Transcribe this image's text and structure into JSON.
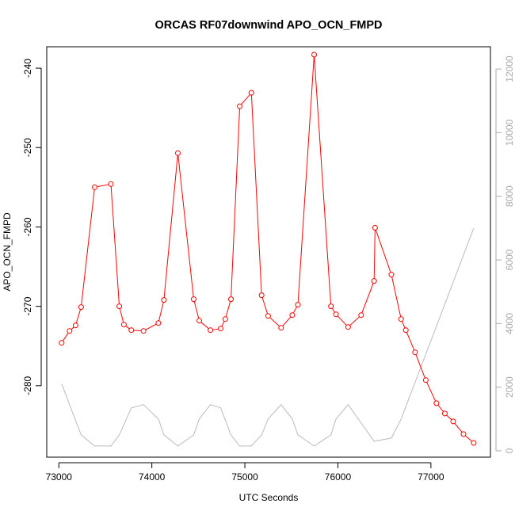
{
  "chart_data": {
    "type": "line",
    "title": "ORCAS RF07downwind APO_OCN_FMPD",
    "xlabel": "UTC Seconds",
    "ylabel": "APO_OCN_FMPD",
    "xlim": [
      72870,
      77640
    ],
    "ylim": [
      -289.0,
      -237.3
    ],
    "y2lim": [
      -200,
      12700
    ],
    "x_ticks": [
      73000,
      74000,
      75000,
      76000,
      77000
    ],
    "y_ticks": [
      -280,
      -270,
      -260,
      -250,
      -240
    ],
    "y2_ticks": [
      0,
      2000,
      4000,
      6000,
      8000,
      10000,
      12000
    ],
    "grid": false,
    "series": [
      {
        "color": "#ff0000",
        "axis": "left",
        "style": "line+points",
        "x": [
          73030,
          73115,
          73180,
          73240,
          73385,
          73560,
          73650,
          73700,
          73780,
          73910,
          74070,
          74130,
          74280,
          74450,
          74510,
          74630,
          74740,
          74790,
          74850,
          74945,
          75070,
          75180,
          75250,
          75390,
          75510,
          75570,
          75745,
          75925,
          75980,
          76110,
          76250,
          76390,
          76400,
          76575,
          76680,
          76730,
          76830,
          76945,
          77060,
          77150,
          77240,
          77350,
          77460
        ],
        "y": [
          -274.6,
          -273.1,
          -272.4,
          -270.1,
          -255.0,
          -254.6,
          -270.0,
          -272.3,
          -273.0,
          -273.1,
          -272.1,
          -269.2,
          -250.7,
          -269.1,
          -271.8,
          -273.0,
          -272.8,
          -271.6,
          -269.1,
          -244.8,
          -243.1,
          -268.6,
          -271.2,
          -272.7,
          -271.1,
          -269.8,
          -238.3,
          -270.0,
          -271.0,
          -272.6,
          -271.1,
          -266.8,
          -260.1,
          -266.0,
          -271.6,
          -273.0,
          -275.8,
          -279.3,
          -282.2,
          -283.5,
          -284.5,
          -286.1,
          -287.2
        ]
      },
      {
        "color": "#bbbbbb",
        "axis": "right",
        "style": "line",
        "x": [
          73030,
          73240,
          73385,
          73560,
          73650,
          73780,
          73910,
          74070,
          74130,
          74280,
          74450,
          74510,
          74630,
          74740,
          74850,
          74945,
          75070,
          75180,
          75250,
          75390,
          75510,
          75570,
          75745,
          75925,
          75980,
          76110,
          76390,
          76575,
          76680,
          77460
        ],
        "y": [
          2100,
          500,
          150,
          150,
          500,
          1350,
          1450,
          1000,
          500,
          150,
          500,
          1000,
          1450,
          1350,
          500,
          150,
          150,
          500,
          1000,
          1450,
          1000,
          500,
          150,
          500,
          1000,
          1450,
          300,
          400,
          1000,
          7000
        ]
      }
    ]
  }
}
